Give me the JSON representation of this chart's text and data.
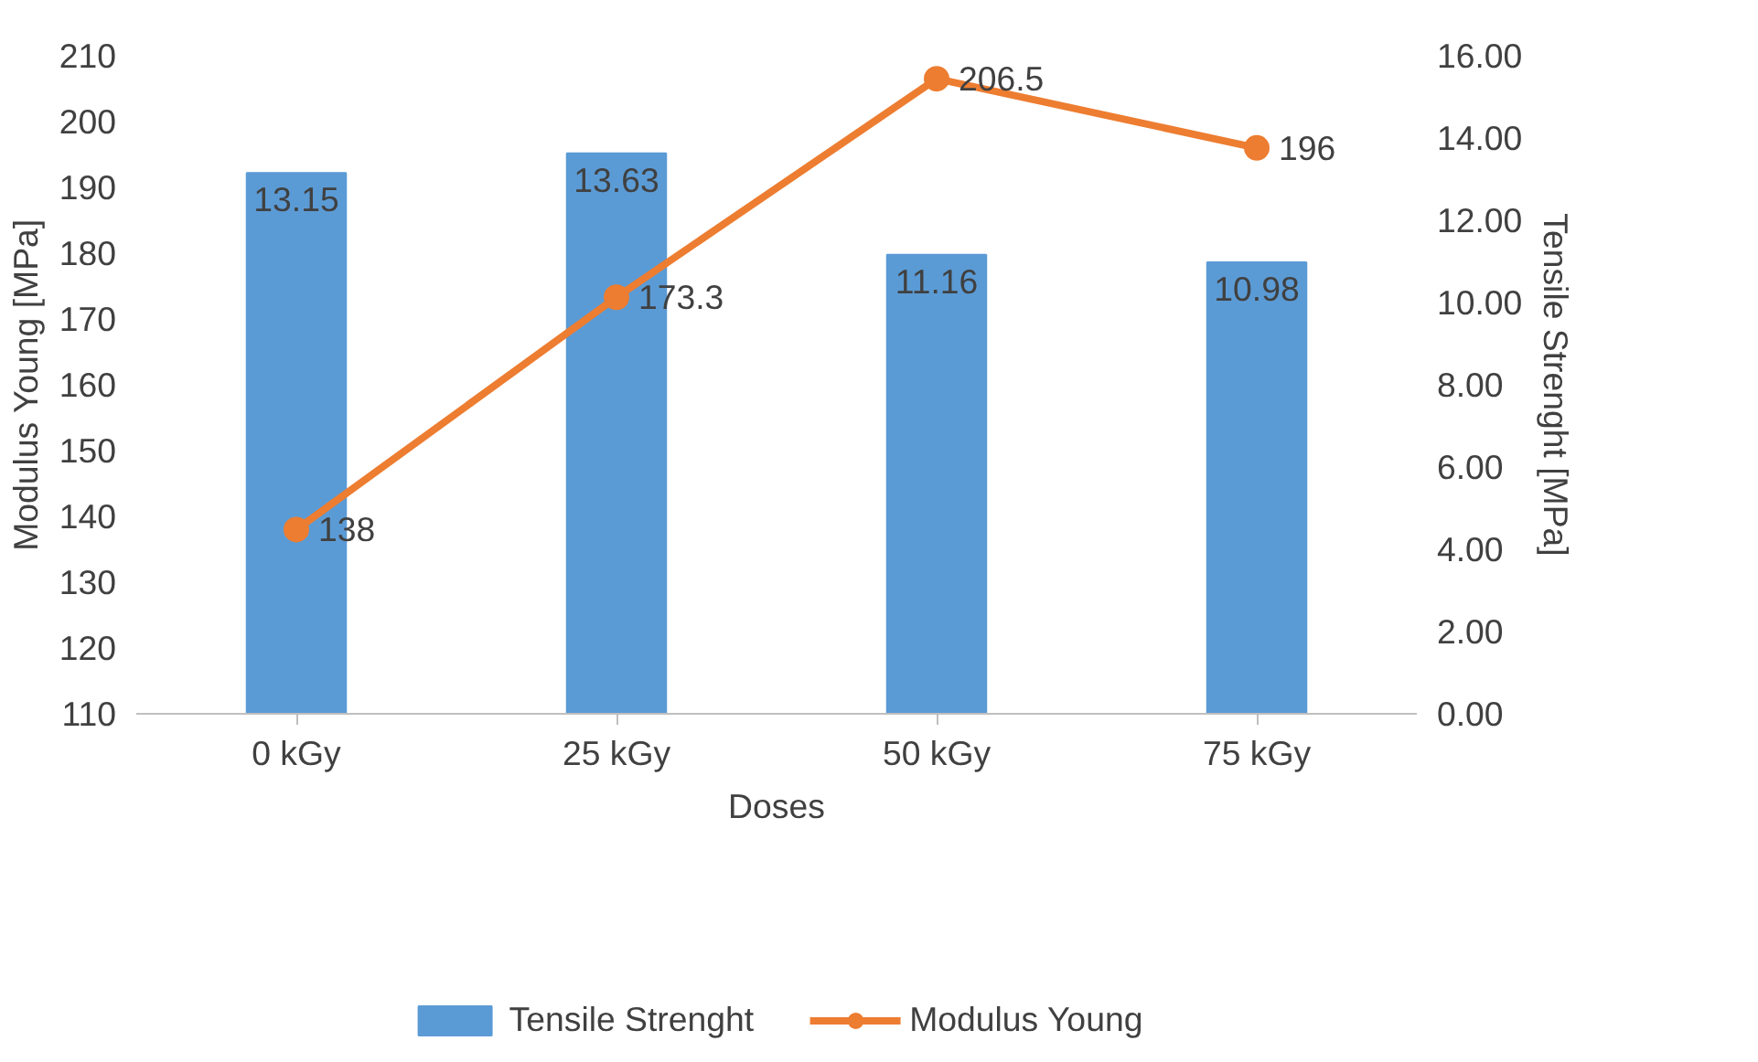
{
  "chart_data": {
    "type": "bar",
    "xlabel": "Doses",
    "ylabel": "Modulus Young [MPa]",
    "y2label": "Tensile Strenght [MPa]",
    "categories": [
      "0 kGy",
      "25 kGy",
      "50 kGy",
      "75 kGy"
    ],
    "series": [
      {
        "name": "Tensile Strenght",
        "axis": "y2",
        "color": "#5b9bd5",
        "values": [
          13.15,
          13.63,
          11.16,
          10.98
        ]
      },
      {
        "name": "Modulus Young",
        "type": "line",
        "color": "#ed7d31",
        "values": [
          138,
          173.3,
          206.5,
          196
        ],
        "marker": "circle"
      }
    ],
    "ylim": [
      110,
      210
    ],
    "yticks": [
      110,
      120,
      130,
      140,
      150,
      160,
      170,
      180,
      190,
      200,
      210
    ],
    "y2lim": [
      0,
      16
    ],
    "y2ticks": [
      {
        "value": 0,
        "label": "0.00"
      },
      {
        "value": 2,
        "label": "2.00"
      },
      {
        "value": 4,
        "label": "4.00"
      },
      {
        "value": 6,
        "label": "6.00"
      },
      {
        "value": 8,
        "label": "8.00"
      },
      {
        "value": 10,
        "label": "10.00"
      },
      {
        "value": 12,
        "label": "12.00"
      },
      {
        "value": 14,
        "label": "14.00"
      },
      {
        "value": 16,
        "label": "16.00"
      }
    ],
    "data_labels": true,
    "legend": "bottom",
    "grid": false
  }
}
